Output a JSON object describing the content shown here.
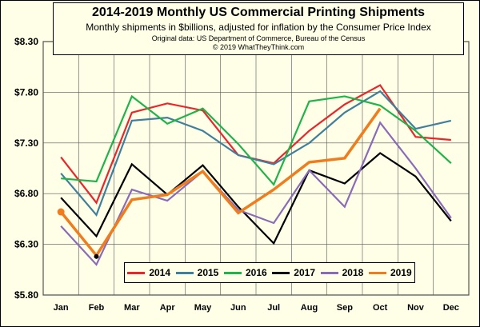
{
  "chart_data": {
    "type": "line",
    "title": "2014-2019 Monthly US Commercial Printing Shipments",
    "subtitle": "Monthly shipments in $billions, adjusted for inflation by the Consumer Price Index",
    "source": "Original data: US Department of Commerce, Bureau of the Census",
    "copyright": "© 2019 WhatTheyThink.com",
    "categories": [
      "Jan",
      "Feb",
      "Mar",
      "Apr",
      "May",
      "Jun",
      "Jul",
      "Aug",
      "Sep",
      "Oct",
      "Nov",
      "Dec"
    ],
    "y_ticks": [
      "$5.80",
      "$6.30",
      "$6.80",
      "$7.30",
      "$7.80",
      "$8.30"
    ],
    "ylim": [
      5.8,
      8.3
    ],
    "grid": true,
    "legend_position": "bottom-center",
    "series": [
      {
        "name": "2014",
        "color": "#e8262b",
        "values": [
          7.16,
          6.71,
          7.6,
          7.69,
          7.62,
          7.18,
          7.1,
          7.42,
          7.68,
          7.87,
          7.36,
          7.33
        ]
      },
      {
        "name": "2015",
        "color": "#3f7f9c",
        "values": [
          7.0,
          6.59,
          7.52,
          7.55,
          7.42,
          7.18,
          7.09,
          7.3,
          7.6,
          7.81,
          7.44,
          7.52
        ]
      },
      {
        "name": "2016",
        "color": "#1fb34a",
        "values": [
          6.95,
          6.92,
          7.76,
          7.49,
          7.64,
          7.29,
          6.89,
          7.71,
          7.76,
          7.67,
          7.42,
          7.1
        ]
      },
      {
        "name": "2017",
        "color": "#000000",
        "values": [
          6.76,
          6.38,
          7.09,
          6.79,
          7.08,
          6.67,
          6.31,
          7.03,
          6.9,
          7.2,
          6.97,
          6.53
        ]
      },
      {
        "name": "2018",
        "color": "#8a6bb8",
        "values": [
          6.48,
          6.1,
          6.84,
          6.73,
          7.02,
          6.64,
          6.51,
          7.03,
          6.67,
          7.5,
          7.05,
          6.56
        ]
      },
      {
        "name": "2019",
        "color": "#f07d1d",
        "values": [
          6.62,
          6.19,
          6.74,
          6.79,
          7.02,
          6.61,
          6.84,
          7.11,
          7.15,
          7.64,
          null,
          null
        ]
      }
    ]
  }
}
